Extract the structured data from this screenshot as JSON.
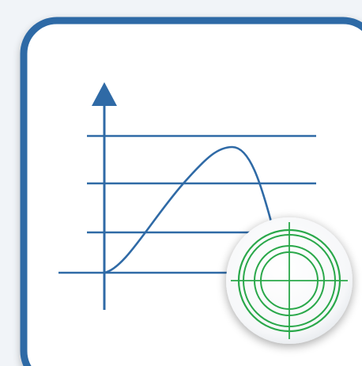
{
  "icon": {
    "kind": "peak-detection-chart-icon",
    "colors": {
      "background": "#f1f4f8",
      "tile_fill": "#ffffff",
      "tile_border": "#2f6aa6",
      "axis": "#2f6aa6",
      "curve": "#2f6aa6",
      "badge_fill": "#ffffff",
      "badge_shadow": "#b9c0c8",
      "target": "#2aa84a"
    },
    "gridline_count": 4,
    "has_arrow_head": true,
    "badge": "crosshair-target-icon"
  }
}
